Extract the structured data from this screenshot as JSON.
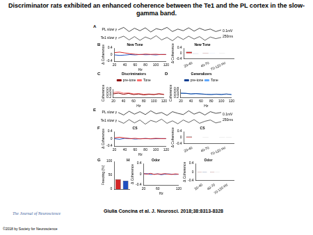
{
  "title": "Discriminator rats exhibited an enhanced coherence between the Te1 and the PL cortex in the slow-gamma band.",
  "citation": "Giulia Concina et al. J. Neurosci. 2018;38:8313-8328",
  "journal": "The Journal of Neuroscience",
  "copyright": "©2018 by Society for Neuroscience",
  "chart_data": [
    {
      "type": "trace",
      "panel": "A",
      "tick_labels": false,
      "grid": false,
      "x": [
        0,
        1,
        2,
        3,
        4,
        5,
        6,
        7,
        8,
        9,
        10,
        11,
        12,
        13,
        14,
        15,
        16,
        17,
        18,
        19
      ],
      "xlim": [
        0,
        19
      ],
      "ylim": [
        -0.5,
        1.5
      ],
      "annotations": [
        "0.1mV",
        "250ms"
      ],
      "series": [
        {
          "name": "PL slow γ",
          "color": "#000000",
          "values": [
            1.0,
            1.3,
            0.8,
            1.2,
            0.9,
            1.25,
            0.75,
            1.15,
            1.0,
            1.3,
            0.8,
            1.1,
            0.9,
            1.25,
            0.85,
            1.2,
            0.95,
            1.1,
            0.8,
            1.0
          ]
        },
        {
          "name": "Te1 slow γ",
          "color": "#222222",
          "values": [
            0.0,
            0.25,
            -0.2,
            0.2,
            -0.25,
            0.15,
            -0.1,
            0.3,
            -0.2,
            0.1,
            -0.3,
            0.2,
            -0.15,
            0.25,
            -0.1,
            0.2,
            -0.25,
            0.15,
            -0.05,
            0.1
          ]
        }
      ]
    },
    {
      "type": "line",
      "panel": "B",
      "title": "New Tone",
      "x_label": "Hz",
      "y_label": "Δ Coherence",
      "grid": false,
      "x": [
        20,
        30,
        40,
        50,
        60,
        70,
        80,
        90,
        100,
        110,
        120
      ],
      "xlim": [
        20,
        120
      ],
      "xticks": [
        20,
        40,
        60,
        80,
        100,
        120
      ],
      "ylim": [
        -0.4,
        0.4
      ],
      "yticks": [
        -0.4,
        0,
        0.4
      ],
      "series": [
        {
          "color": "#d62728",
          "values": [
            0.12,
            0.15,
            0.1,
            0.05,
            0.02,
            0.0,
            0.03,
            0.01,
            0.02,
            0.0,
            0.01
          ]
        },
        {
          "color": "#1f4fbf",
          "values": [
            -0.02,
            -0.05,
            -0.03,
            0.0,
            -0.02,
            0.01,
            -0.01,
            0.0,
            -0.02,
            0.01,
            0.0
          ]
        }
      ]
    },
    {
      "type": "bar",
      "title": "New Tone",
      "y_label": "Δ Coherence",
      "grid": false,
      "categories": [
        "20-40",
        "40-70",
        "70-120 Hz"
      ],
      "ylim": [
        -0.4,
        0.4
      ],
      "yticks": [
        -0.4,
        0,
        0.4
      ],
      "series": [
        {
          "color": "#d62728",
          "values": [
            0.12,
            0.03,
            0.01
          ]
        },
        {
          "color": "#1f4fbf",
          "values": [
            -0.03,
            -0.01,
            0.0
          ]
        }
      ]
    },
    {
      "type": "line",
      "panel": "C",
      "title": "Discriminators",
      "x_label": "Hz",
      "y_label": "Coherence",
      "grid": false,
      "legend": "top",
      "x": [
        20,
        30,
        40,
        50,
        60,
        70,
        80,
        90,
        100,
        110,
        120
      ],
      "xlim": [
        20,
        120
      ],
      "xticks": [
        20,
        40,
        60,
        80,
        100,
        120
      ],
      "ylim": [
        0.2,
        0.8
      ],
      "yticks": [
        0.2,
        0.4,
        0.6,
        0.8
      ],
      "series": [
        {
          "name": "pre-tone",
          "color": "#8b0000",
          "values": [
            0.45,
            0.5,
            0.42,
            0.48,
            0.4,
            0.44,
            0.38,
            0.42,
            0.4,
            0.45,
            0.4
          ]
        },
        {
          "name": "Tone",
          "color": "#ff6b6b",
          "values": [
            0.55,
            0.6,
            0.5,
            0.52,
            0.45,
            0.47,
            0.42,
            0.44,
            0.41,
            0.46,
            0.42
          ]
        }
      ]
    },
    {
      "type": "line",
      "panel": "D",
      "title": "Generalizers",
      "x_label": "Hz",
      "y_label": "Coherence",
      "grid": false,
      "legend": "top",
      "x": [
        20,
        30,
        40,
        50,
        60,
        70,
        80,
        90,
        100,
        110,
        120
      ],
      "xlim": [
        20,
        120
      ],
      "xticks": [
        20,
        40,
        60,
        80,
        100,
        120
      ],
      "ylim": [
        0.2,
        0.8
      ],
      "yticks": [
        0.2,
        0.4,
        0.6,
        0.8
      ],
      "series": [
        {
          "name": "pre-tone",
          "color": "#0b3d91",
          "values": [
            0.5,
            0.48,
            0.45,
            0.47,
            0.44,
            0.42,
            0.4,
            0.43,
            0.41,
            0.44,
            0.4
          ]
        },
        {
          "name": "Tone",
          "color": "#5fa8ff",
          "values": [
            0.49,
            0.5,
            0.44,
            0.46,
            0.45,
            0.41,
            0.42,
            0.42,
            0.4,
            0.43,
            0.41
          ]
        }
      ]
    },
    {
      "type": "trace",
      "panel": "E",
      "tick_labels": false,
      "grid": false,
      "x": [
        0,
        1,
        2,
        3,
        4,
        5,
        6,
        7,
        8,
        9,
        10,
        11,
        12,
        13,
        14,
        15,
        16,
        17,
        18,
        19
      ],
      "xlim": [
        0,
        19
      ],
      "ylim": [
        -0.5,
        1.5
      ],
      "annotations": [
        "0.1mV",
        "250ms"
      ],
      "series": [
        {
          "name": "PL slow γ",
          "color": "#000000",
          "values": [
            1.1,
            0.8,
            1.25,
            0.9,
            1.2,
            0.85,
            1.3,
            0.95,
            1.1,
            0.75,
            1.2,
            1.0,
            0.85,
            1.3,
            0.9,
            1.15,
            0.8,
            1.2,
            1.0,
            1.1
          ]
        },
        {
          "name": "Te1 slow γ",
          "color": "#222222",
          "values": [
            0.1,
            -0.2,
            0.25,
            -0.15,
            0.2,
            -0.3,
            0.15,
            -0.05,
            0.3,
            -0.2,
            0.1,
            -0.25,
            0.2,
            -0.1,
            0.25,
            -0.2,
            0.05,
            0.2,
            -0.15,
            0.0
          ]
        }
      ]
    },
    {
      "type": "line",
      "panel": "F",
      "title": "CS",
      "x_label": "Hz",
      "y_label": "Δ Coherence",
      "grid": false,
      "x": [
        20,
        30,
        40,
        50,
        60,
        70,
        80,
        90,
        100,
        110,
        120
      ],
      "xlim": [
        20,
        120
      ],
      "xticks": [
        20,
        40,
        60,
        80,
        100,
        120
      ],
      "ylim": [
        -0.4,
        0.4
      ],
      "yticks": [
        -0.4,
        0,
        0.4
      ],
      "series": [
        {
          "color": "#d62728",
          "values": [
            0.05,
            0.08,
            0.04,
            0.0,
            0.02,
            -0.01,
            0.01,
            0.0,
            0.02,
            0.0,
            0.01
          ]
        },
        {
          "color": "#1f4fbf",
          "values": [
            0.0,
            -0.03,
            0.02,
            0.01,
            -0.02,
            0.0,
            0.01,
            -0.01,
            0.0,
            0.01,
            0.0
          ]
        }
      ]
    },
    {
      "type": "bar",
      "title": "CS",
      "y_label": "Δ Coherence",
      "grid": false,
      "categories": [
        "20-40",
        "40-70",
        "70-120 Hz"
      ],
      "ylim": [
        -0.4,
        0.4
      ],
      "yticks": [
        -0.4,
        0,
        0.4
      ],
      "series": [
        {
          "color": "#d62728",
          "values": [
            0.06,
            0.01,
            0.01
          ]
        },
        {
          "color": "#1f4fbf",
          "values": [
            0.0,
            0.0,
            0.01
          ]
        }
      ]
    },
    {
      "type": "bar",
      "panel": "G",
      "y_label": "Freezing (%)",
      "grid": false,
      "categories": [
        null,
        null
      ],
      "ylim": [
        0,
        100
      ],
      "yticks": [
        0,
        50,
        100
      ],
      "values": [
        35,
        30
      ],
      "colors": [
        "#d62728",
        "#1f4fbf"
      ]
    },
    {
      "type": "line",
      "panel": "H",
      "title": "Odor",
      "x_label": "Hz",
      "y_label": "Δ Coherence",
      "grid": false,
      "x": [
        20,
        30,
        40,
        50,
        60,
        70,
        80,
        90,
        100,
        110,
        120
      ],
      "xlim": [
        20,
        120
      ],
      "xticks": [
        20,
        60,
        120
      ],
      "ylim": [
        -0.4,
        0.4
      ],
      "yticks": [
        -0.4,
        0,
        0.4
      ],
      "series": [
        {
          "color": "#d62728",
          "values": [
            0.02,
            0.0,
            0.03,
            -0.01,
            0.01,
            0.0,
            0.02,
            0.0,
            -0.01,
            0.01,
            0.0
          ]
        },
        {
          "color": "#1f4fbf",
          "values": [
            0.01,
            0.02,
            -0.01,
            0.0,
            0.01,
            -0.02,
            0.0,
            0.01,
            0.0,
            -0.01,
            0.0
          ]
        }
      ]
    },
    {
      "type": "bar",
      "title": "Odor",
      "y_label": "Δ Coherence",
      "grid": false,
      "categories": [
        "20-40",
        "40-70",
        "70-120 Hz"
      ],
      "ylim": [
        -0.4,
        0.4
      ],
      "yticks": [
        -0.4,
        0,
        0.4
      ],
      "series": [
        {
          "color": "#d62728",
          "values": [
            0.01,
            0.01,
            0.0
          ]
        },
        {
          "color": "#1f4fbf",
          "values": [
            0.01,
            -0.01,
            0.0
          ]
        }
      ]
    }
  ]
}
